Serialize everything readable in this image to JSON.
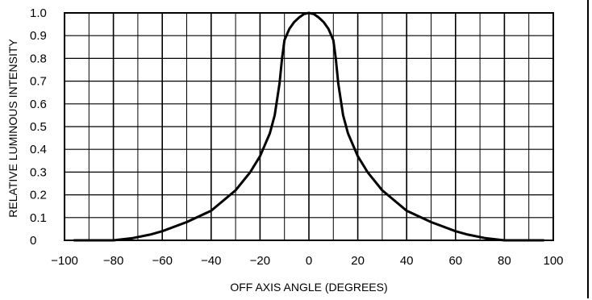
{
  "chart_data": {
    "type": "line",
    "xlabel": "OFF AXIS ANGLE (DEGREES)",
    "ylabel": "RELATIVE LUMINOUS INTENSITY",
    "xlim": [
      -100,
      100
    ],
    "ylim": [
      0,
      1.0
    ],
    "x_ticks": [
      -100,
      -80,
      -60,
      -40,
      -20,
      0,
      20,
      40,
      60,
      80,
      100
    ],
    "x_tick_labels": [
      "−100",
      "−80",
      "−60",
      "−40",
      "−20",
      "0",
      "20",
      "40",
      "60",
      "80",
      "100"
    ],
    "y_ticks": [
      0,
      0.1,
      0.2,
      0.3,
      0.4,
      0.5,
      0.6,
      0.7,
      0.8,
      0.9,
      1.0
    ],
    "y_tick_labels": [
      "0",
      "0.1",
      "0.2",
      "0.3",
      "0.4",
      "0.5",
      "0.6",
      "0.7",
      "0.8",
      "0.9",
      "1.0"
    ],
    "grid": true,
    "line_color": "#000000",
    "series": [
      {
        "x": [
          -96,
          -80,
          -72,
          -65,
          -60,
          -50,
          -40,
          -30,
          -24,
          -20,
          -16,
          -14,
          -12,
          -11,
          -10,
          -8,
          -6,
          -4,
          -2,
          0,
          2,
          4,
          6,
          8,
          10,
          11,
          12,
          14,
          16,
          20,
          24,
          30,
          40,
          50,
          60,
          65,
          72,
          80,
          96
        ],
        "y": [
          0,
          0,
          0.01,
          0.025,
          0.04,
          0.08,
          0.13,
          0.22,
          0.3,
          0.37,
          0.47,
          0.55,
          0.69,
          0.8,
          0.88,
          0.93,
          0.96,
          0.98,
          0.995,
          1.0,
          0.995,
          0.98,
          0.96,
          0.93,
          0.88,
          0.8,
          0.69,
          0.55,
          0.47,
          0.37,
          0.3,
          0.22,
          0.13,
          0.08,
          0.04,
          0.025,
          0.01,
          0,
          0
        ]
      }
    ]
  }
}
